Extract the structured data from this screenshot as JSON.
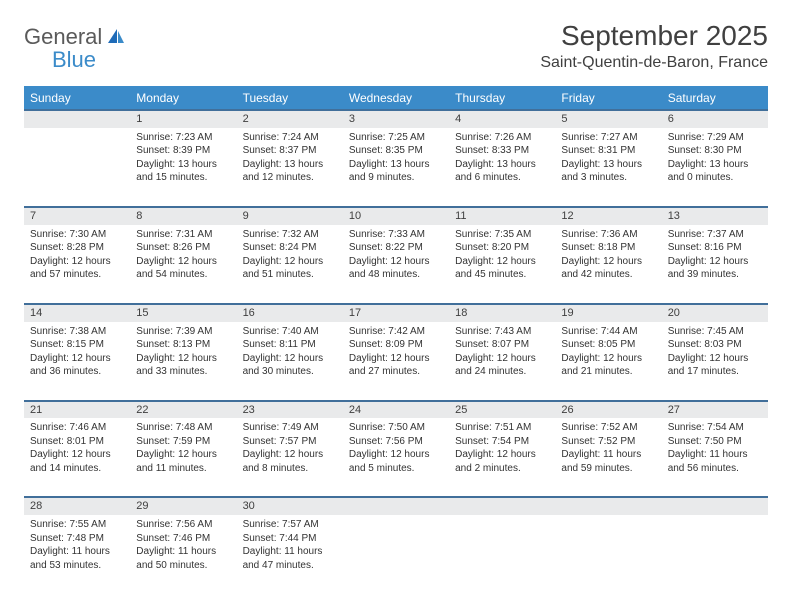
{
  "logo": {
    "word1": "General",
    "word2": "Blue"
  },
  "title": "September 2025",
  "location": "Saint-Quentin-de-Baron, France",
  "colors": {
    "header_bg": "#3b8bc9",
    "header_border": "#416f9a",
    "daynum_bg": "#e9eaeb",
    "text": "#333333",
    "page_bg": "#ffffff"
  },
  "weekdays": [
    "Sunday",
    "Monday",
    "Tuesday",
    "Wednesday",
    "Thursday",
    "Friday",
    "Saturday"
  ],
  "weeks": [
    [
      null,
      {
        "n": "1",
        "sr": "Sunrise: 7:23 AM",
        "ss": "Sunset: 8:39 PM",
        "d1": "Daylight: 13 hours",
        "d2": "and 15 minutes."
      },
      {
        "n": "2",
        "sr": "Sunrise: 7:24 AM",
        "ss": "Sunset: 8:37 PM",
        "d1": "Daylight: 13 hours",
        "d2": "and 12 minutes."
      },
      {
        "n": "3",
        "sr": "Sunrise: 7:25 AM",
        "ss": "Sunset: 8:35 PM",
        "d1": "Daylight: 13 hours",
        "d2": "and 9 minutes."
      },
      {
        "n": "4",
        "sr": "Sunrise: 7:26 AM",
        "ss": "Sunset: 8:33 PM",
        "d1": "Daylight: 13 hours",
        "d2": "and 6 minutes."
      },
      {
        "n": "5",
        "sr": "Sunrise: 7:27 AM",
        "ss": "Sunset: 8:31 PM",
        "d1": "Daylight: 13 hours",
        "d2": "and 3 minutes."
      },
      {
        "n": "6",
        "sr": "Sunrise: 7:29 AM",
        "ss": "Sunset: 8:30 PM",
        "d1": "Daylight: 13 hours",
        "d2": "and 0 minutes."
      }
    ],
    [
      {
        "n": "7",
        "sr": "Sunrise: 7:30 AM",
        "ss": "Sunset: 8:28 PM",
        "d1": "Daylight: 12 hours",
        "d2": "and 57 minutes."
      },
      {
        "n": "8",
        "sr": "Sunrise: 7:31 AM",
        "ss": "Sunset: 8:26 PM",
        "d1": "Daylight: 12 hours",
        "d2": "and 54 minutes."
      },
      {
        "n": "9",
        "sr": "Sunrise: 7:32 AM",
        "ss": "Sunset: 8:24 PM",
        "d1": "Daylight: 12 hours",
        "d2": "and 51 minutes."
      },
      {
        "n": "10",
        "sr": "Sunrise: 7:33 AM",
        "ss": "Sunset: 8:22 PM",
        "d1": "Daylight: 12 hours",
        "d2": "and 48 minutes."
      },
      {
        "n": "11",
        "sr": "Sunrise: 7:35 AM",
        "ss": "Sunset: 8:20 PM",
        "d1": "Daylight: 12 hours",
        "d2": "and 45 minutes."
      },
      {
        "n": "12",
        "sr": "Sunrise: 7:36 AM",
        "ss": "Sunset: 8:18 PM",
        "d1": "Daylight: 12 hours",
        "d2": "and 42 minutes."
      },
      {
        "n": "13",
        "sr": "Sunrise: 7:37 AM",
        "ss": "Sunset: 8:16 PM",
        "d1": "Daylight: 12 hours",
        "d2": "and 39 minutes."
      }
    ],
    [
      {
        "n": "14",
        "sr": "Sunrise: 7:38 AM",
        "ss": "Sunset: 8:15 PM",
        "d1": "Daylight: 12 hours",
        "d2": "and 36 minutes."
      },
      {
        "n": "15",
        "sr": "Sunrise: 7:39 AM",
        "ss": "Sunset: 8:13 PM",
        "d1": "Daylight: 12 hours",
        "d2": "and 33 minutes."
      },
      {
        "n": "16",
        "sr": "Sunrise: 7:40 AM",
        "ss": "Sunset: 8:11 PM",
        "d1": "Daylight: 12 hours",
        "d2": "and 30 minutes."
      },
      {
        "n": "17",
        "sr": "Sunrise: 7:42 AM",
        "ss": "Sunset: 8:09 PM",
        "d1": "Daylight: 12 hours",
        "d2": "and 27 minutes."
      },
      {
        "n": "18",
        "sr": "Sunrise: 7:43 AM",
        "ss": "Sunset: 8:07 PM",
        "d1": "Daylight: 12 hours",
        "d2": "and 24 minutes."
      },
      {
        "n": "19",
        "sr": "Sunrise: 7:44 AM",
        "ss": "Sunset: 8:05 PM",
        "d1": "Daylight: 12 hours",
        "d2": "and 21 minutes."
      },
      {
        "n": "20",
        "sr": "Sunrise: 7:45 AM",
        "ss": "Sunset: 8:03 PM",
        "d1": "Daylight: 12 hours",
        "d2": "and 17 minutes."
      }
    ],
    [
      {
        "n": "21",
        "sr": "Sunrise: 7:46 AM",
        "ss": "Sunset: 8:01 PM",
        "d1": "Daylight: 12 hours",
        "d2": "and 14 minutes."
      },
      {
        "n": "22",
        "sr": "Sunrise: 7:48 AM",
        "ss": "Sunset: 7:59 PM",
        "d1": "Daylight: 12 hours",
        "d2": "and 11 minutes."
      },
      {
        "n": "23",
        "sr": "Sunrise: 7:49 AM",
        "ss": "Sunset: 7:57 PM",
        "d1": "Daylight: 12 hours",
        "d2": "and 8 minutes."
      },
      {
        "n": "24",
        "sr": "Sunrise: 7:50 AM",
        "ss": "Sunset: 7:56 PM",
        "d1": "Daylight: 12 hours",
        "d2": "and 5 minutes."
      },
      {
        "n": "25",
        "sr": "Sunrise: 7:51 AM",
        "ss": "Sunset: 7:54 PM",
        "d1": "Daylight: 12 hours",
        "d2": "and 2 minutes."
      },
      {
        "n": "26",
        "sr": "Sunrise: 7:52 AM",
        "ss": "Sunset: 7:52 PM",
        "d1": "Daylight: 11 hours",
        "d2": "and 59 minutes."
      },
      {
        "n": "27",
        "sr": "Sunrise: 7:54 AM",
        "ss": "Sunset: 7:50 PM",
        "d1": "Daylight: 11 hours",
        "d2": "and 56 minutes."
      }
    ],
    [
      {
        "n": "28",
        "sr": "Sunrise: 7:55 AM",
        "ss": "Sunset: 7:48 PM",
        "d1": "Daylight: 11 hours",
        "d2": "and 53 minutes."
      },
      {
        "n": "29",
        "sr": "Sunrise: 7:56 AM",
        "ss": "Sunset: 7:46 PM",
        "d1": "Daylight: 11 hours",
        "d2": "and 50 minutes."
      },
      {
        "n": "30",
        "sr": "Sunrise: 7:57 AM",
        "ss": "Sunset: 7:44 PM",
        "d1": "Daylight: 11 hours",
        "d2": "and 47 minutes."
      },
      null,
      null,
      null,
      null
    ]
  ]
}
